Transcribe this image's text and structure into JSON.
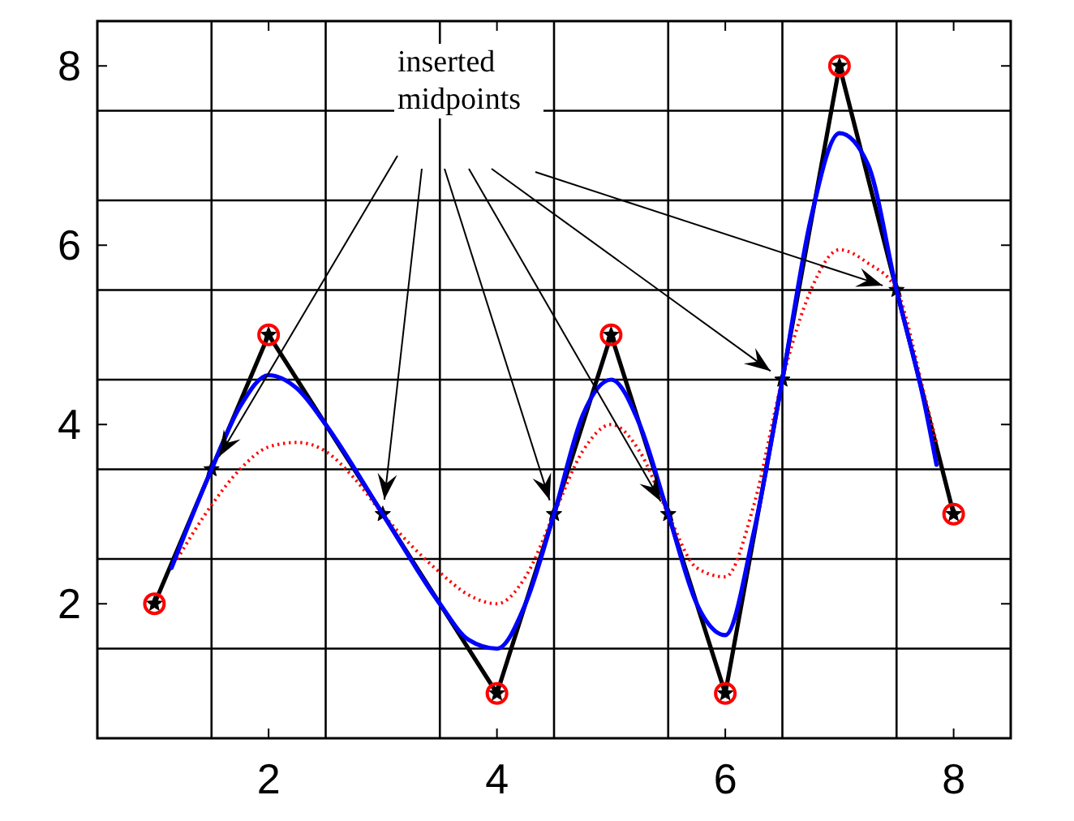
{
  "chart_data": {
    "type": "line",
    "xlim": [
      0.5,
      8.5
    ],
    "ylim": [
      0.5,
      8.5
    ],
    "xticks": [
      {
        "value": 1.5,
        "label": null
      },
      2,
      {
        "value": 2.5,
        "label": null
      },
      {
        "value": 3.5,
        "label": null
      },
      4,
      {
        "value": 4.5,
        "label": null
      },
      {
        "value": 5.5,
        "label": null
      },
      6,
      {
        "value": 6.5,
        "label": null
      },
      {
        "value": 7.5,
        "label": null
      },
      8
    ],
    "yticks": [
      {
        "value": 1.5,
        "label": null
      },
      2,
      {
        "value": 2.5,
        "label": null
      },
      {
        "value": 3.5,
        "label": null
      },
      4,
      {
        "value": 4.5,
        "label": null
      },
      {
        "value": 5.5,
        "label": null
      },
      6,
      {
        "value": 6.5,
        "label": null
      },
      {
        "value": 7.5,
        "label": null
      },
      8
    ],
    "grid": true,
    "annotations": [
      {
        "text": "inserted midpoints",
        "x": 1.5,
        "y": 3.5
      }
    ],
    "series": [
      {
        "color": "#000000",
        "marker": "star",
        "line_style": "solid",
        "x": [
          1,
          1.5,
          2,
          3,
          4,
          4.5,
          5,
          5.5,
          6,
          6.5,
          7,
          7.5,
          8
        ],
        "values": [
          2,
          3.5,
          5,
          3,
          1,
          3,
          5,
          3,
          1,
          4.5,
          8,
          5.5,
          3
        ]
      },
      {
        "color": "#ff0000",
        "marker": "none",
        "line_style": "dotted",
        "x": [
          1.2,
          1.5,
          1.75,
          2,
          2.25,
          2.5,
          2.75,
          3,
          3.5,
          3.75,
          4,
          4.25,
          4.5,
          4.75,
          5,
          5.25,
          5.5,
          5.75,
          6,
          6.25,
          6.5,
          6.75,
          7,
          7.25,
          7.5,
          7.75,
          7.85
        ],
        "values": [
          2.5,
          3.1,
          3.5,
          3.75,
          3.8,
          3.7,
          3.4,
          3.0,
          2.35,
          2.1,
          2.0,
          2.3,
          3.0,
          3.7,
          4.0,
          3.7,
          3.0,
          2.4,
          2.3,
          3.1,
          4.5,
          5.5,
          5.95,
          5.8,
          5.5,
          4.3,
          3.8
        ]
      },
      {
        "color": "#0000ff",
        "marker": "none",
        "line_style": "solid",
        "x": [
          1.15,
          1.5,
          1.75,
          2,
          2.25,
          2.5,
          3,
          3.5,
          3.75,
          4,
          4.25,
          4.5,
          4.75,
          5,
          5.25,
          5.5,
          5.75,
          6,
          6.25,
          6.5,
          6.75,
          7,
          7.25,
          7.5,
          7.75,
          7.85
        ],
        "values": [
          2.4,
          3.5,
          4.2,
          4.55,
          4.4,
          4.0,
          3.0,
          2.0,
          1.6,
          1.5,
          2.0,
          3.0,
          4.1,
          4.5,
          4.0,
          3.0,
          2.0,
          1.65,
          2.8,
          4.5,
          6.3,
          7.25,
          6.9,
          5.5,
          4.2,
          3.55
        ]
      },
      {
        "type": "scatter",
        "color": "#ff0000",
        "marker": "circle",
        "x": [
          1,
          2,
          4,
          5,
          6,
          7,
          8
        ],
        "values": [
          2,
          5,
          1,
          5,
          1,
          8,
          3
        ]
      }
    ]
  }
}
